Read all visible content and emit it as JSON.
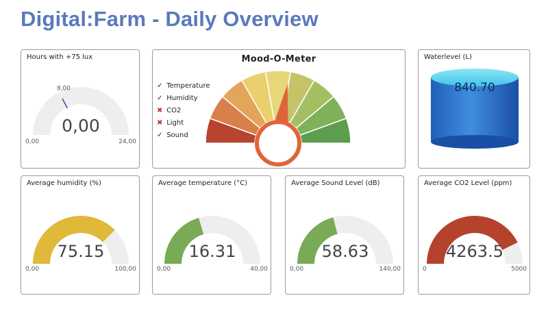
{
  "page": {
    "title": "Digital:Farm - Daily Overview"
  },
  "hours_lux": {
    "title": "Hours with +75 lux",
    "value": "0,00",
    "min": "0,00",
    "max": "24,00",
    "target": "8,00",
    "value_fraction": 0.0,
    "target_fraction": 0.3333
  },
  "mood": {
    "title": "Mood-O-Meter",
    "legend": [
      {
        "label": "Temperature",
        "status": "ok"
      },
      {
        "label": "Humidity",
        "status": "ok"
      },
      {
        "label": "CO2",
        "status": "bad"
      },
      {
        "label": "Light",
        "status": "bad"
      },
      {
        "label": "Sound",
        "status": "ok"
      }
    ],
    "check_mark": "✓",
    "cross_mark": "✖",
    "segment_colors": [
      "#b8432f",
      "#d9804a",
      "#e2a55a",
      "#ead06c",
      "#e6d87a",
      "#c5c36a",
      "#a3bf62",
      "#7fb05a",
      "#5c9d4e"
    ],
    "needle_color": "#e0643a",
    "needle_fraction": 0.55
  },
  "waterlevel": {
    "title": "Waterlevel (L)",
    "value": "840.70"
  },
  "humidity": {
    "title": "Average humidity (%)",
    "value": "75.15",
    "min": "0,00",
    "max": "100,00",
    "fraction": 0.7515,
    "color": "#e0b83a"
  },
  "temperature": {
    "title": "Average temperature (°C)",
    "value": "16.31",
    "min": "0,00",
    "max": "40,00",
    "fraction": 0.4078,
    "color": "#79ab56"
  },
  "sound": {
    "title": "Average Sound Level (dB)",
    "value": "58.63",
    "min": "0,00",
    "max": "140,00",
    "fraction": 0.4188,
    "color": "#79ab56"
  },
  "co2": {
    "title": "Average CO2 Level (ppm)",
    "value": "4263.5",
    "min": "0",
    "max": "5000",
    "fraction": 0.8527,
    "color": "#b5422d"
  },
  "colors": {
    "title": "#5b79bb",
    "gauge_bg": "#eeeeee",
    "water_top": "#5fd3ee",
    "water_body": "#2a70c8"
  }
}
